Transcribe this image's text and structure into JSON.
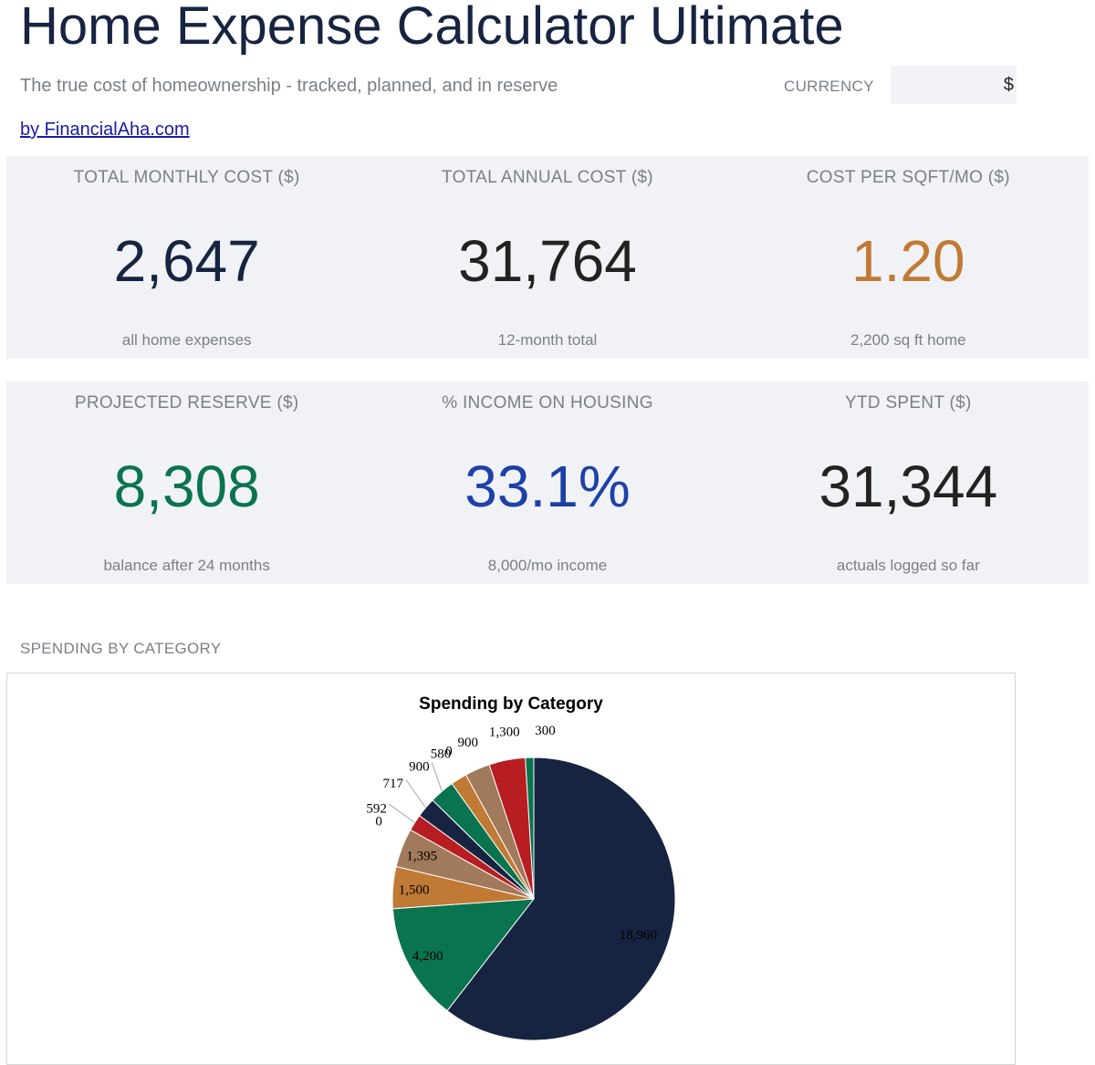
{
  "header": {
    "title": "Home Expense Calculator Ultimate",
    "subtitle": "The true cost of homeownership - tracked, planned, and in reserve",
    "currency_label": "CURRENCY",
    "currency_value": "$",
    "byline": "by FinancialAha.com"
  },
  "kpis": [
    {
      "label": "TOTAL MONTHLY COST ($)",
      "value": "2,647",
      "sub": "all home expenses",
      "color": "#172441"
    },
    {
      "label": "TOTAL ANNUAL COST ($)",
      "value": "31,764",
      "sub": "12-month total",
      "color": "#222222"
    },
    {
      "label": "COST PER SQFT/MO ($)",
      "value": "1.20",
      "sub": "2,200 sq ft home",
      "color": "#c07a35"
    },
    {
      "label": "PROJECTED RESERVE ($)",
      "value": "8,308",
      "sub": "balance after 24 months",
      "color": "#0a7350"
    },
    {
      "label": "% INCOME ON HOUSING",
      "value": "33.1%",
      "sub": "8,000/mo income",
      "color": "#1e40a8"
    },
    {
      "label": "YTD SPENT ($)",
      "value": "31,344",
      "sub": "actuals logged so far",
      "color": "#222222"
    }
  ],
  "section_label": "SPENDING BY CATEGORY",
  "chart_data": {
    "type": "pie",
    "title": "Spending by Category",
    "values": [
      18960,
      4200,
      1500,
      1395,
      0,
      592,
      717,
      900,
      580,
      0,
      900,
      1300,
      300
    ],
    "labels": [
      "18,960",
      "4,200",
      "1,500",
      "1,395",
      "0",
      "592",
      "717",
      "900",
      "580",
      "0",
      "900",
      "1,300",
      "300"
    ],
    "colors": [
      "#172441",
      "#0a7350",
      "#c07a35",
      "#a07a5a",
      "#a07a5a",
      "#b81d22",
      "#172441",
      "#0a7350",
      "#c07a35",
      "#a07a5a",
      "#a07a5a",
      "#b81d22",
      "#0a7350"
    ]
  }
}
